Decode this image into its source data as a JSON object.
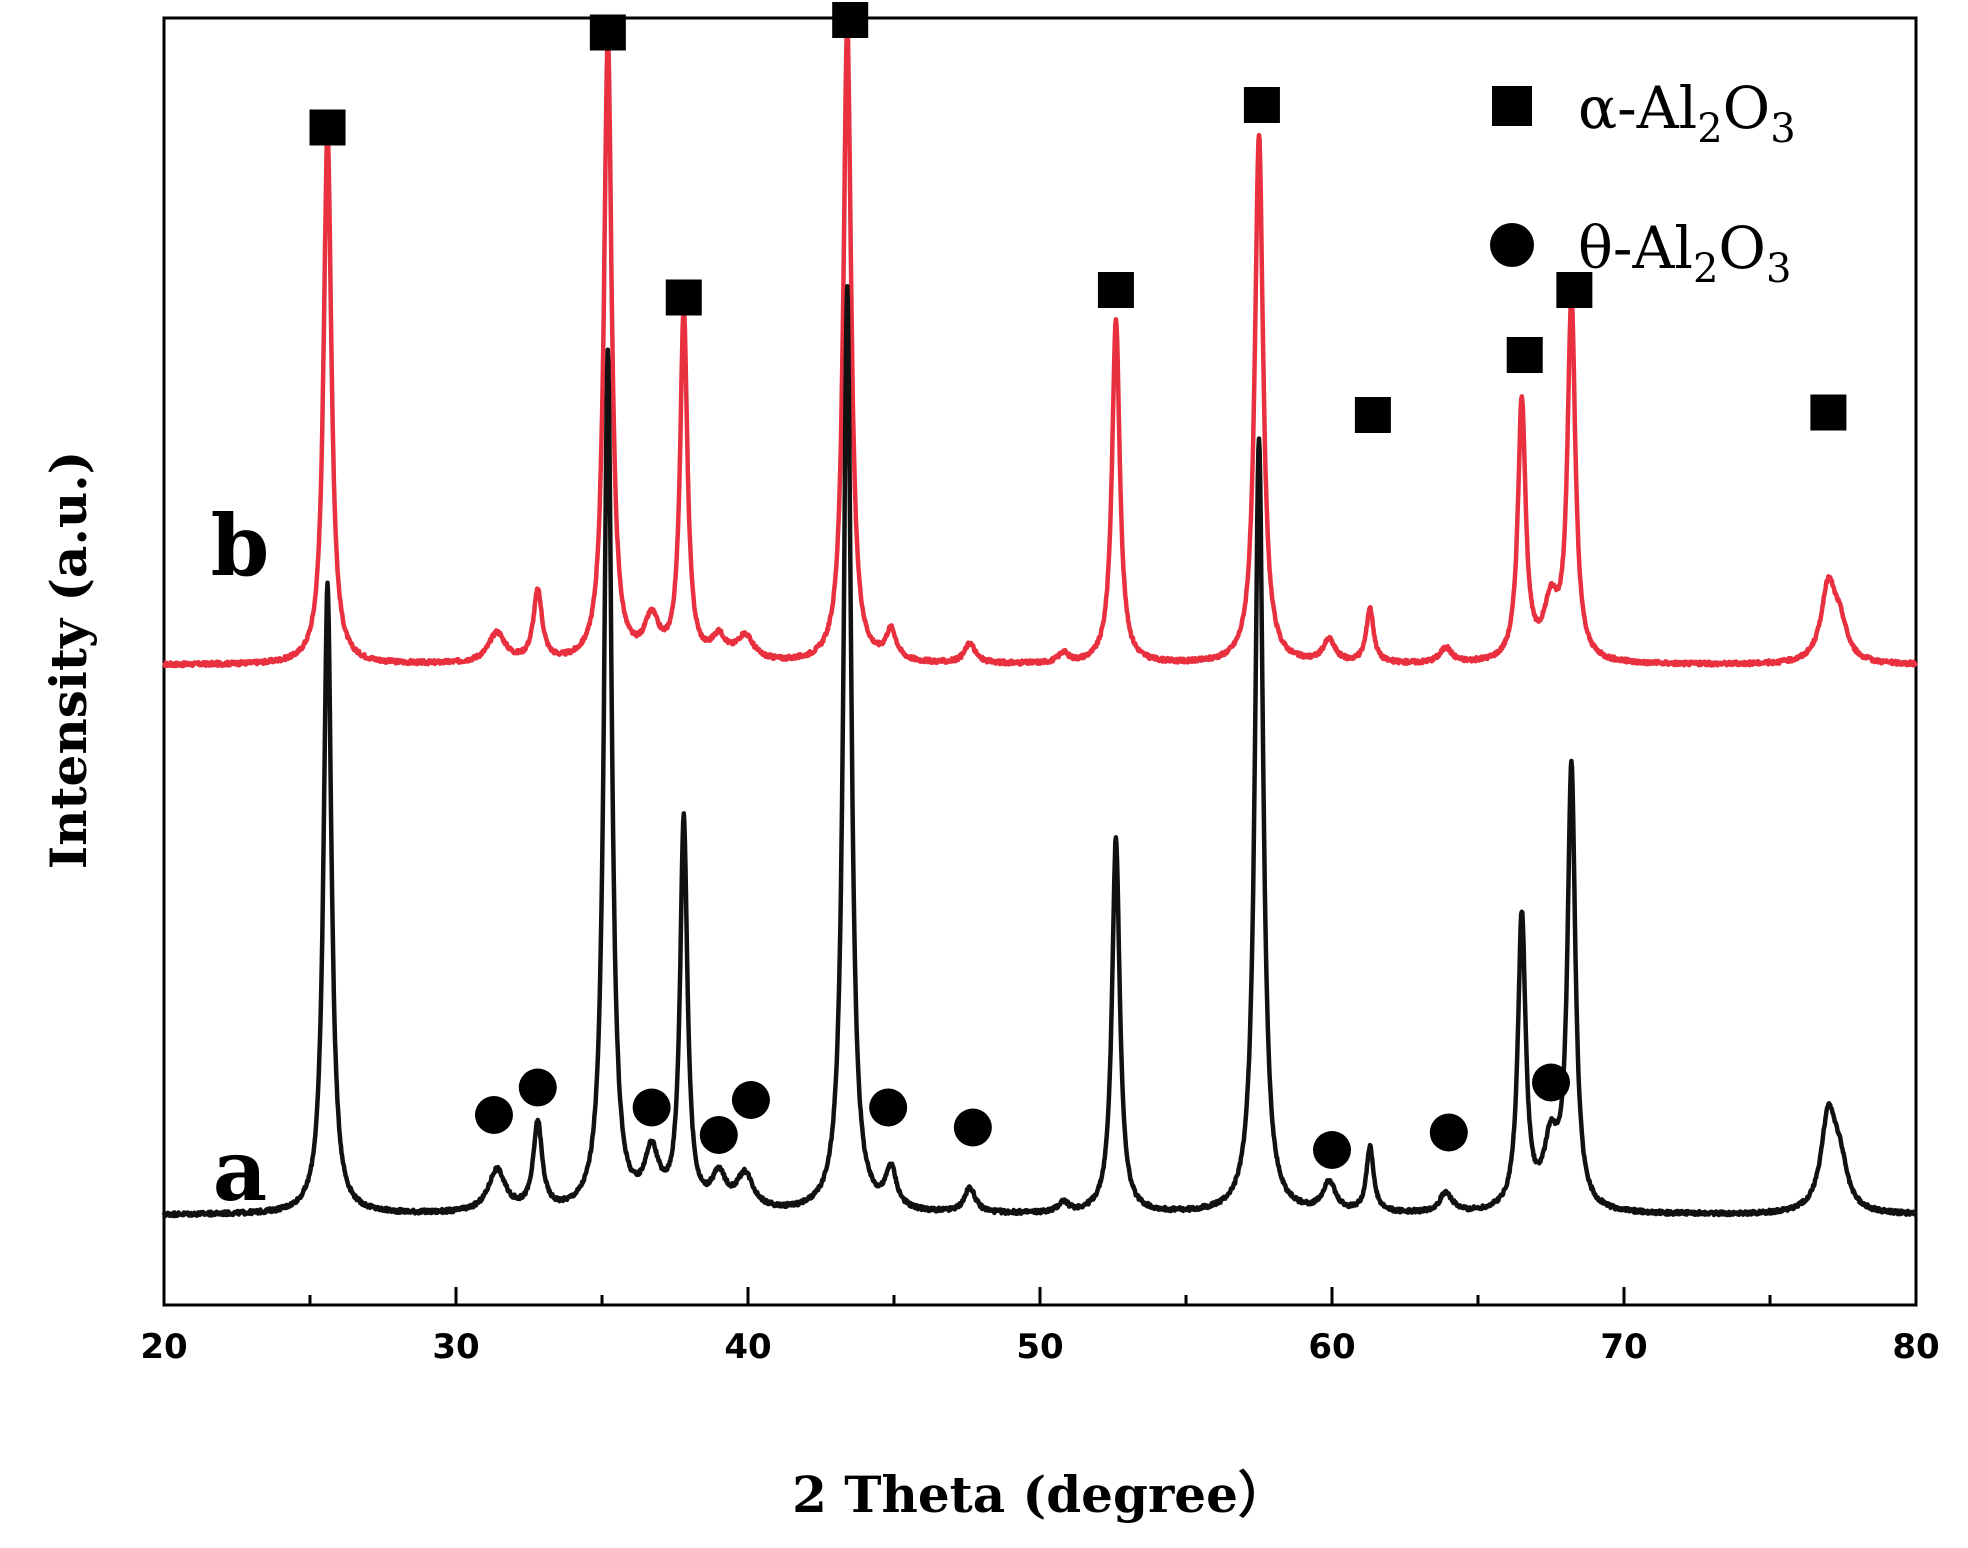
{
  "chart_data": {
    "type": "line",
    "xlabel": "2 Theta (degree）",
    "ylabel": "Intensity (a.u.)",
    "xlim": [
      20,
      80
    ],
    "xticks": [
      "20",
      "30",
      "40",
      "50",
      "60",
      "70",
      "80"
    ],
    "yticks": [],
    "legend": {
      "placement": "top-right",
      "entries": [
        {
          "marker": "square",
          "label": "α-Al",
          "sub1": "2",
          "mid": "O",
          "sub2": "3"
        },
        {
          "marker": "circle",
          "label": "θ-Al",
          "sub1": "2",
          "mid": "O",
          "sub2": "3"
        }
      ]
    },
    "baseline_noise": 2,
    "series": [
      {
        "label": "b",
        "color": "#e8303f",
        "baseline": 1100,
        "peaks": [
          [
            25.6,
            1070,
            0.16
          ],
          [
            31.4,
            60,
            0.35
          ],
          [
            32.8,
            140,
            0.18
          ],
          [
            35.2,
            1250,
            0.16
          ],
          [
            36.7,
            80,
            0.3
          ],
          [
            37.8,
            700,
            0.15
          ],
          [
            39.0,
            45,
            0.3
          ],
          [
            39.9,
            50,
            0.35
          ],
          [
            43.4,
            1280,
            0.16
          ],
          [
            44.9,
            60,
            0.22
          ],
          [
            47.6,
            40,
            0.22
          ],
          [
            50.8,
            20,
            0.2
          ],
          [
            52.6,
            690,
            0.16
          ],
          [
            57.5,
            1060,
            0.17
          ],
          [
            59.9,
            45,
            0.25
          ],
          [
            61.3,
            110,
            0.15
          ],
          [
            63.9,
            30,
            0.25
          ],
          [
            66.5,
            520,
            0.16
          ],
          [
            67.5,
            110,
            0.3
          ],
          [
            68.2,
            720,
            0.16
          ],
          [
            77.0,
            150,
            0.3
          ],
          [
            77.4,
            65,
            0.3
          ]
        ],
        "markers": [
          {
            "x": 25.6,
            "y": 2175,
            "shape": "square"
          },
          {
            "x": 35.2,
            "y": 2365,
            "shape": "square"
          },
          {
            "x": 37.8,
            "y": 1835,
            "shape": "square"
          },
          {
            "x": 43.5,
            "y": 2390,
            "shape": "square"
          },
          {
            "x": 52.6,
            "y": 1850,
            "shape": "square"
          },
          {
            "x": 57.6,
            "y": 2220,
            "shape": "square"
          },
          {
            "x": 61.4,
            "y": 1600,
            "shape": "square"
          },
          {
            "x": 66.6,
            "y": 1720,
            "shape": "square"
          },
          {
            "x": 68.3,
            "y": 1850,
            "shape": "square"
          },
          {
            "x": 77.0,
            "y": 1605,
            "shape": "square"
          }
        ]
      },
      {
        "label": "a",
        "color": "#111111",
        "baseline": 0,
        "peaks": [
          [
            25.6,
            1260,
            0.16
          ],
          [
            31.4,
            85,
            0.35
          ],
          [
            32.8,
            175,
            0.18
          ],
          [
            35.2,
            1720,
            0.16
          ],
          [
            36.7,
            110,
            0.3
          ],
          [
            37.8,
            780,
            0.15
          ],
          [
            39.0,
            65,
            0.3
          ],
          [
            39.9,
            70,
            0.35
          ],
          [
            43.4,
            1850,
            0.16
          ],
          [
            44.9,
            80,
            0.22
          ],
          [
            47.6,
            50,
            0.22
          ],
          [
            50.8,
            20,
            0.2
          ],
          [
            52.6,
            750,
            0.16
          ],
          [
            57.5,
            1550,
            0.17
          ],
          [
            59.9,
            60,
            0.25
          ],
          [
            61.3,
            130,
            0.15
          ],
          [
            63.9,
            40,
            0.25
          ],
          [
            66.5,
            590,
            0.16
          ],
          [
            67.5,
            130,
            0.3
          ],
          [
            68.2,
            880,
            0.16
          ],
          [
            77.0,
            190,
            0.3
          ],
          [
            77.4,
            85,
            0.3
          ]
        ],
        "markers": [
          {
            "x": 31.3,
            "y": 200,
            "shape": "circle"
          },
          {
            "x": 32.8,
            "y": 255,
            "shape": "circle"
          },
          {
            "x": 36.7,
            "y": 215,
            "shape": "circle"
          },
          {
            "x": 39.0,
            "y": 160,
            "shape": "circle"
          },
          {
            "x": 40.1,
            "y": 230,
            "shape": "circle"
          },
          {
            "x": 44.8,
            "y": 215,
            "shape": "circle"
          },
          {
            "x": 47.7,
            "y": 175,
            "shape": "circle"
          },
          {
            "x": 60.0,
            "y": 130,
            "shape": "circle"
          },
          {
            "x": 64.0,
            "y": 165,
            "shape": "circle"
          },
          {
            "x": 67.5,
            "y": 265,
            "shape": "circle"
          }
        ]
      }
    ]
  }
}
